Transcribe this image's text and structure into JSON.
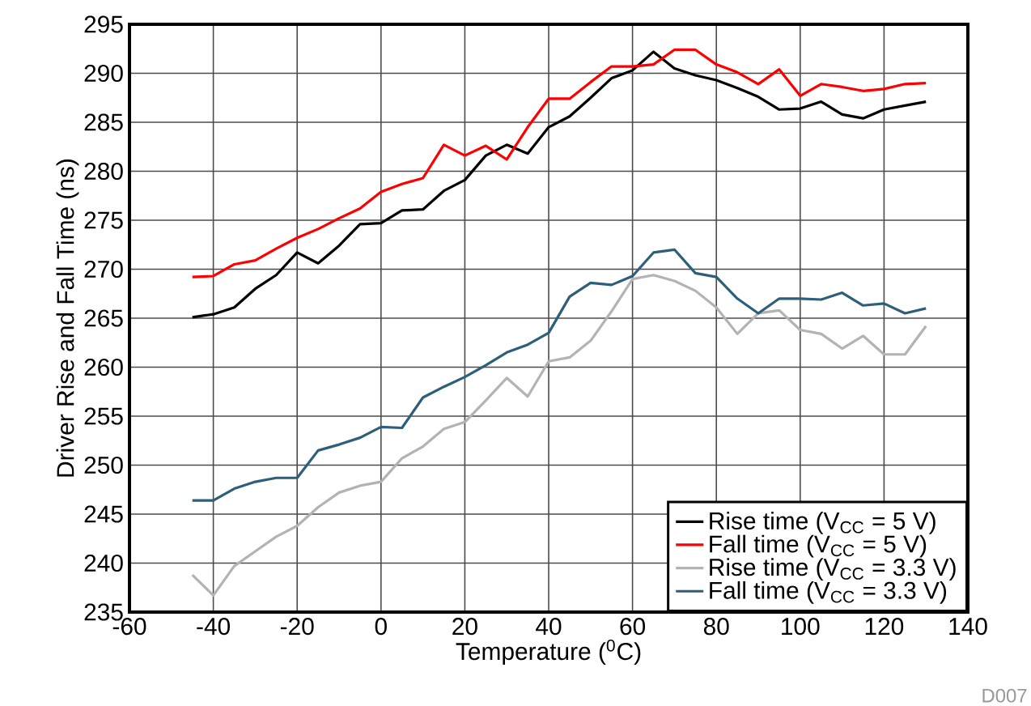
{
  "chart_data": {
    "type": "line",
    "xlabel": "Temperature ($^{0}$C)",
    "ylabel": "Driver Rise and Fall Time (ns)",
    "x": [
      -45,
      -40,
      -35,
      -30,
      -25,
      -20,
      -15,
      -10,
      -5,
      0,
      5,
      10,
      15,
      20,
      25,
      30,
      35,
      40,
      45,
      50,
      55,
      60,
      65,
      70,
      75,
      80,
      85,
      90,
      95,
      100,
      105,
      110,
      115,
      120,
      125,
      130
    ],
    "series": [
      {
        "name": "Rise time (V$_{CC}$ = 5 V)",
        "color": "#000000",
        "values": [
          265.1,
          265.4,
          266.1,
          268,
          269.4,
          271.7,
          270.6,
          272.4,
          274.6,
          274.7,
          276,
          276.1,
          278,
          279.1,
          281.6,
          282.7,
          281.8,
          284.5,
          285.6,
          287.5,
          289.5,
          290.3,
          292.2,
          290.5,
          289.8,
          289.3,
          288.5,
          287.6,
          286.3,
          286.4,
          287.1,
          285.8,
          285.4,
          286.3,
          286.7,
          287.1
        ]
      },
      {
        "name": "Fall time (V$_{CC}$ = 5 V)",
        "color": "#ff0000",
        "values": [
          269.2,
          269.3,
          270.5,
          270.9,
          272.1,
          273.2,
          274.1,
          275.2,
          276.2,
          277.9,
          278.7,
          279.3,
          282.7,
          281.6,
          282.6,
          281.2,
          284.5,
          287.4,
          287.4,
          289.1,
          290.7,
          290.7,
          290.9,
          292.4,
          292.4,
          290.9,
          290.1,
          288.9,
          290.4,
          287.7,
          288.9,
          288.6,
          288.2,
          288.4,
          288.9,
          289.0
        ]
      },
      {
        "name": "Rise time (V$_{CC}$ = 3.3 V)",
        "color": "#b3b3b3",
        "values": [
          238.8,
          236.7,
          239.7,
          241.2,
          242.7,
          243.8,
          245.7,
          247.2,
          247.9,
          248.3,
          250.7,
          251.9,
          253.7,
          254.4,
          256.6,
          258.9,
          257,
          260.6,
          261,
          262.7,
          265.7,
          269,
          269.4,
          268.8,
          267.8,
          266.1,
          263.4,
          265.5,
          265.8,
          263.8,
          263.4,
          261.9,
          263.2,
          261.3,
          261.3,
          264.2
        ]
      },
      {
        "name": "Fall time (V$_{CC}$ = 3.3 V)",
        "color": "#2e5f7a",
        "values": [
          246.4,
          246.4,
          247.6,
          248.3,
          248.7,
          248.7,
          251.5,
          252.1,
          252.8,
          253.9,
          253.8,
          256.9,
          258,
          259,
          260.2,
          261.5,
          262.3,
          263.5,
          267.2,
          268.6,
          268.4,
          269.3,
          271.7,
          272,
          269.6,
          269.2,
          267,
          265.5,
          267,
          267,
          266.9,
          267.6,
          266.3,
          266.5,
          265.5,
          266
        ]
      }
    ],
    "xlim": [
      -60,
      140
    ],
    "ylim": [
      235,
      295
    ],
    "xticks": [
      -60,
      -40,
      -20,
      0,
      20,
      40,
      60,
      80,
      100,
      120,
      140
    ],
    "yticks": [
      235,
      240,
      245,
      250,
      255,
      260,
      265,
      270,
      275,
      280,
      285,
      290,
      295
    ],
    "grid": true,
    "legend": "bottom right",
    "marker": "none",
    "line_style": "solid",
    "annotations": [
      "D007"
    ]
  }
}
